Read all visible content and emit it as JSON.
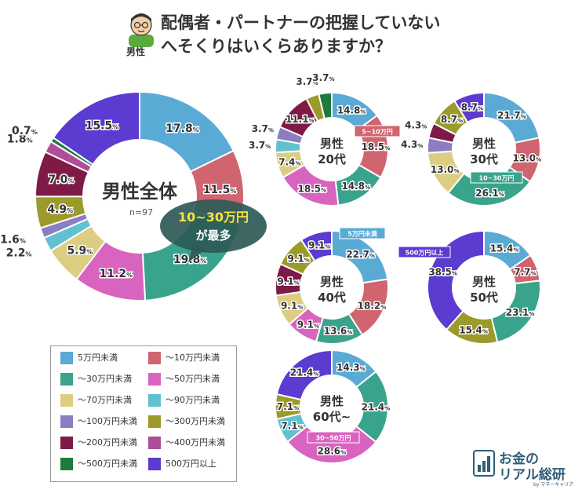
{
  "page": {
    "title_line1": "配偶者・パートナーの把握していない",
    "title_line2": "へそくりはいくらありますか？",
    "gender_badge": "男性",
    "brand_line1": "お金の",
    "brand_line2": "リアル総研",
    "brand_sub": "by マネーキャリア"
  },
  "legend": {
    "categories": [
      "5万円未満",
      "～10万円未満",
      "～30万円未満",
      "～50万円未満",
      "～70万円未満",
      "～90万円未満",
      "～100万円未満",
      "～300万円未満",
      "～200万円未満",
      "～400万円未満",
      "～500万円未満",
      "500万円以上"
    ],
    "colors": [
      "#5aaad6",
      "#d0646f",
      "#3aa38c",
      "#d964c0",
      "#dccd82",
      "#62c1cf",
      "#8c7dc2",
      "#9b9a2a",
      "#7e1a45",
      "#b04d98",
      "#1f7a3d",
      "#5b3bd0"
    ]
  },
  "chart_data": [
    {
      "type": "pie",
      "title": "男性全体",
      "n_label": "n=97",
      "callout": {
        "line1": "10~30万円",
        "line2": "が最多"
      },
      "categories": [
        "5万円未満",
        "～10万円未満",
        "～30万円未満",
        "～50万円未満",
        "～70万円未満",
        "～90万円未満",
        "～100万円未満",
        "～300万円未満",
        "～200万円未満",
        "～400万円未満",
        "～500万円未満",
        "500万円以上"
      ],
      "values": [
        17.8,
        11.5,
        19.8,
        11.2,
        5.9,
        2.2,
        1.6,
        4.9,
        7.0,
        1.8,
        0.7,
        15.5
      ],
      "labels": [
        "17.8",
        "11.5",
        "19.8",
        "11.2",
        "5.9",
        "2.2",
        "1.6",
        "4.9",
        "7.0",
        "1.8",
        "0.7",
        "15.5"
      ]
    },
    {
      "type": "pie",
      "title": "男性 20代",
      "title_line1": "男性",
      "title_line2": "20代",
      "callout": "5~10万円",
      "categories": [
        "5万円未満",
        "～10万円未満",
        "～30万円未満",
        "～50万円未満",
        "～70万円未満",
        "～90万円未満",
        "～100万円未満",
        "～200万円未満",
        "～300万円未満",
        "～500万円未満"
      ],
      "values": [
        14.8,
        18.5,
        14.8,
        18.5,
        7.4,
        3.7,
        3.7,
        11.1,
        3.7,
        3.7
      ],
      "labels": [
        "14.8",
        "18.5",
        "14.8",
        "18.5",
        "7.4",
        "3.7",
        "3.7",
        "11.1",
        "3.7",
        "3.7"
      ]
    },
    {
      "type": "pie",
      "title": "男性 30代",
      "title_line1": "男性",
      "title_line2": "30代",
      "callout": "10~30万円",
      "categories": [
        "5万円未満",
        "～10万円未満",
        "～30万円未満",
        "～70万円未満",
        "～100万円未満",
        "～200万円未満",
        "～300万円未満",
        "500万円以上"
      ],
      "values": [
        21.7,
        13.0,
        26.1,
        13.0,
        4.3,
        4.3,
        8.7,
        8.7
      ],
      "labels": [
        "21.7",
        "13.0",
        "26.1",
        "13.0",
        "4.3",
        "4.3",
        "8.7",
        "8.7"
      ]
    },
    {
      "type": "pie",
      "title": "男性 40代",
      "title_line1": "男性",
      "title_line2": "40代",
      "callout": "5万円未満",
      "categories": [
        "5万円未満",
        "～10万円未満",
        "～30万円未満",
        "～50万円未満",
        "～70万円未満",
        "～200万円未満",
        "～300万円未満",
        "500万円以上"
      ],
      "values": [
        22.7,
        18.2,
        13.6,
        9.1,
        9.1,
        9.1,
        9.1,
        9.1
      ],
      "labels": [
        "22.7",
        "18.2",
        "13.6",
        "9.1",
        "9.1",
        "9.1",
        "9.1",
        "9.1"
      ]
    },
    {
      "type": "pie",
      "title": "男性 50代",
      "title_line1": "男性",
      "title_line2": "50代",
      "callout": "500万円以上",
      "categories": [
        "5万円未満",
        "～10万円未満",
        "～30万円未満",
        "～300万円未満",
        "500万円以上"
      ],
      "values": [
        15.4,
        7.7,
        23.1,
        15.4,
        38.5
      ],
      "labels": [
        "15.4",
        "7.7",
        "23.1",
        "15.4",
        "38.5"
      ]
    },
    {
      "type": "pie",
      "title": "男性 60代~",
      "title_line1": "男性",
      "title_line2": "60代~",
      "callout": "30~50万円",
      "categories": [
        "5万円未満",
        "～30万円未満",
        "～50万円未満",
        "～90万円未満",
        "～300万円未満",
        "500万円以上"
      ],
      "values": [
        14.3,
        21.4,
        28.6,
        7.1,
        7.1,
        21.4
      ],
      "labels": [
        "14.3",
        "21.4",
        "28.6",
        "7.1",
        "7.1",
        "21.4"
      ]
    }
  ]
}
